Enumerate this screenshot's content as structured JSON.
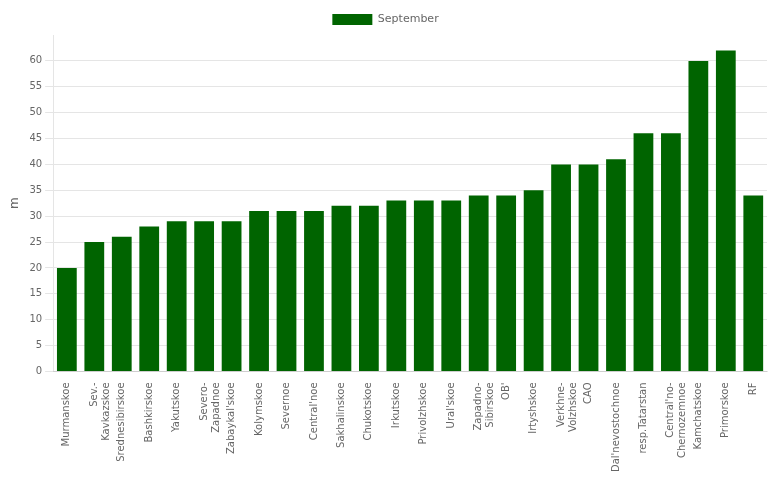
{
  "chart_data": {
    "type": "bar",
    "categories": [
      "Murmanskoe",
      "Sev.-\nKavkazskoe",
      "Srednesibirskoe",
      "Bashkirskoe",
      "Yakutskoe",
      "Severo-\nZapadnoe",
      "Zabaykal'skoe",
      "Kolymskoe",
      "Severnoe",
      "Central'noe",
      "Sakhalinskoe",
      "Chukotskoe",
      "Irkutskoe",
      "Privolzhskoe",
      "Ural'skoe",
      "Zapadno-\nSibirskoe",
      "OB'",
      "Irtyshskoe",
      "Verkhne-\nVolzhskoe",
      "CAO",
      "Dal'nevostochnoe",
      "resp.Tatarstan",
      "Central'no-\nChernozemnoe",
      "Kamchatskoe",
      "Primorskoe",
      "RF"
    ],
    "series": [
      {
        "name": "September",
        "color": "#006400",
        "values": [
          20,
          25,
          26,
          28,
          29,
          29,
          29,
          31,
          31,
          31,
          32,
          32,
          33,
          33,
          33,
          34,
          34,
          35,
          40,
          40,
          41,
          46,
          46,
          60,
          62,
          34
        ]
      }
    ],
    "ylabel": "m",
    "ylim": [
      0,
      65
    ],
    "yticks": [
      0,
      5,
      10,
      15,
      20,
      25,
      30,
      35,
      40,
      45,
      50,
      55,
      60
    ],
    "grid": true,
    "legend": "top"
  }
}
